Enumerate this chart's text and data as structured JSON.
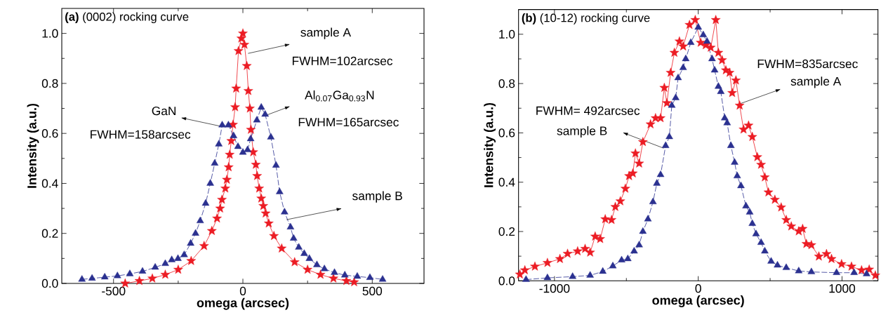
{
  "chart_data": [
    {
      "type": "line",
      "title": "**(a)** (0002) rocking curve",
      "xlabel": "omega (arcsec)",
      "ylabel": "Intensity (a.u.)",
      "xlim": [
        -700,
        700
      ],
      "ylim": [
        0,
        1.1
      ],
      "xticks": [
        -500,
        0,
        500
      ],
      "yticks": [
        {
          "value": 0,
          "label": "0.0"
        },
        {
          "value": 0.2,
          "label": "0.2"
        },
        {
          "value": 0.4,
          "label": "0.4"
        },
        {
          "value": 0.6,
          "label": "0.6"
        },
        {
          "value": 0.8,
          "label": "0.8"
        },
        {
          "value": 1.0,
          "label": "1.0"
        }
      ],
      "series": [
        {
          "color": "#ec1c24",
          "marker": "star",
          "line_style": "solid",
          "x": [
            -455,
            -400,
            -350,
            -300,
            -250,
            -200,
            -150,
            -120,
            -100,
            -88,
            -81,
            -68,
            -62,
            -55,
            -51,
            -45,
            -38,
            -30,
            -26,
            -17,
            -6,
            0,
            6,
            15,
            21,
            27,
            31,
            40,
            50,
            55,
            63,
            71,
            79,
            88,
            100,
            120,
            150,
            200,
            250,
            300,
            350,
            400,
            430
          ],
          "values": [
            0.0,
            0.01,
            0.02,
            0.035,
            0.055,
            0.09,
            0.15,
            0.21,
            0.26,
            0.3,
            0.335,
            0.38,
            0.415,
            0.465,
            0.515,
            0.57,
            0.635,
            0.705,
            0.78,
            0.93,
            0.98,
            1.0,
            0.955,
            0.87,
            0.77,
            0.7,
            0.615,
            0.525,
            0.475,
            0.43,
            0.38,
            0.34,
            0.31,
            0.28,
            0.24,
            0.19,
            0.14,
            0.085,
            0.055,
            0.035,
            0.02,
            0.01,
            0.005
          ]
        },
        {
          "color": "#2b3190",
          "marker": "triangle",
          "line_style": "dashed",
          "x": [
            -622,
            -583,
            -534,
            -485,
            -437,
            -388,
            -339,
            -300,
            -275,
            -251,
            -227,
            -202,
            -183,
            -165,
            -144,
            -126,
            -109,
            -93,
            -80,
            -56,
            -36,
            -19,
            0,
            18,
            30,
            54,
            71,
            86,
            108,
            128,
            142,
            161,
            184,
            196,
            216,
            237,
            257,
            286,
            315,
            354,
            394,
            442,
            491,
            540
          ],
          "values": [
            0.016,
            0.02,
            0.025,
            0.03,
            0.038,
            0.048,
            0.064,
            0.079,
            0.094,
            0.099,
            0.114,
            0.16,
            0.2,
            0.25,
            0.32,
            0.4,
            0.48,
            0.557,
            0.633,
            0.633,
            0.59,
            0.547,
            0.524,
            0.534,
            0.578,
            0.653,
            0.704,
            0.676,
            0.585,
            0.472,
            0.366,
            0.285,
            0.225,
            0.18,
            0.144,
            0.119,
            0.099,
            0.074,
            0.058,
            0.043,
            0.033,
            0.028,
            0.023,
            0.016
          ]
        }
      ],
      "annotations": [
        "sample A",
        "FWHM=102arcsec",
        "Al$_{0.07}$Ga$_{0.93}$N",
        "FWHM=165arcsec",
        "GaN",
        "FWHM=158arcsec",
        "sample B"
      ]
    },
    {
      "type": "line",
      "title": "**(b)** (10-12) rocking curve",
      "xlabel": "omega (arcsec)",
      "ylabel": "Intensity (a.u.)",
      "xlim": [
        -1250,
        1250
      ],
      "ylim": [
        0,
        1.1
      ],
      "xticks": [
        -1000,
        0,
        1000
      ],
      "yticks": [
        {
          "value": 0,
          "label": "0.0"
        },
        {
          "value": 0.2,
          "label": "0.2"
        },
        {
          "value": 0.4,
          "label": "0.4"
        },
        {
          "value": 0.6,
          "label": "0.6"
        },
        {
          "value": 0.8,
          "label": "0.8"
        },
        {
          "value": 1.0,
          "label": "1.0"
        }
      ],
      "series": [
        {
          "color": "#ec1c24",
          "marker": "star",
          "line_style": "solid",
          "x": [
            -1241,
            -1206,
            -1136,
            -1049,
            -962,
            -909,
            -839,
            -787,
            -752,
            -717,
            -682,
            -647,
            -603,
            -577,
            -542,
            -507,
            -481,
            -455,
            -437,
            -411,
            -385,
            -332,
            -297,
            -262,
            -236,
            -218,
            -192,
            -166,
            -131,
            -105,
            -61,
            -21,
            17,
            52,
            87,
            122,
            140,
            166,
            192,
            218,
            236,
            262,
            288,
            315,
            350,
            376,
            411,
            437,
            463,
            488,
            533,
            577,
            612,
            647,
            699,
            726,
            752,
            787,
            839,
            892,
            927,
            997,
            1066,
            1136,
            1189,
            1232
          ],
          "values": [
            0.026,
            0.043,
            0.058,
            0.073,
            0.089,
            0.11,
            0.12,
            0.13,
            0.115,
            0.18,
            0.17,
            0.25,
            0.247,
            0.3,
            0.323,
            0.374,
            0.425,
            0.436,
            0.517,
            0.476,
            0.563,
            0.635,
            0.66,
            0.66,
            0.783,
            0.721,
            0.844,
            0.925,
            0.971,
            0.951,
            1.038,
            1.058,
            0.966,
            0.956,
            0.946,
            1.058,
            0.925,
            0.895,
            0.854,
            0.844,
            0.762,
            0.813,
            0.711,
            0.614,
            0.63,
            0.584,
            0.502,
            0.471,
            0.42,
            0.359,
            0.329,
            0.298,
            0.247,
            0.221,
            0.201,
            0.211,
            0.15,
            0.145,
            0.099,
            0.109,
            0.089,
            0.068,
            0.058,
            0.043,
            0.046,
            0.022
          ]
        },
        {
          "color": "#2b3190",
          "marker": "triangle",
          "line_style": "dashed",
          "x": [
            -1198,
            -1049,
            -874,
            -752,
            -664,
            -594,
            -533,
            -490,
            -446,
            -411,
            -385,
            -350,
            -315,
            -288,
            -262,
            -227,
            -201,
            -184,
            -157,
            -140,
            -105,
            -87,
            -52,
            0,
            35,
            61,
            96,
            114,
            140,
            157,
            184,
            201,
            227,
            253,
            271,
            297,
            332,
            358,
            376,
            402,
            437,
            463,
            507,
            551,
            612,
            699,
            787,
            962,
            1084,
            1171
          ],
          "values": [
            0.005,
            0.012,
            0.017,
            0.022,
            0.038,
            0.06,
            0.084,
            0.089,
            0.12,
            0.145,
            0.2,
            0.25,
            0.32,
            0.395,
            0.43,
            0.548,
            0.584,
            0.711,
            0.742,
            0.823,
            0.864,
            0.9,
            0.966,
            1.028,
            0.997,
            0.971,
            0.9,
            0.854,
            0.788,
            0.767,
            0.66,
            0.64,
            0.548,
            0.48,
            0.425,
            0.385,
            0.303,
            0.278,
            0.232,
            0.19,
            0.155,
            0.12,
            0.079,
            0.063,
            0.053,
            0.04,
            0.036,
            0.033,
            0.033,
            0.028
          ]
        }
      ],
      "annotations": [
        "FWHM=835arcsec",
        "sample A",
        "FWHM= 492arcsec",
        "sample B"
      ]
    }
  ]
}
